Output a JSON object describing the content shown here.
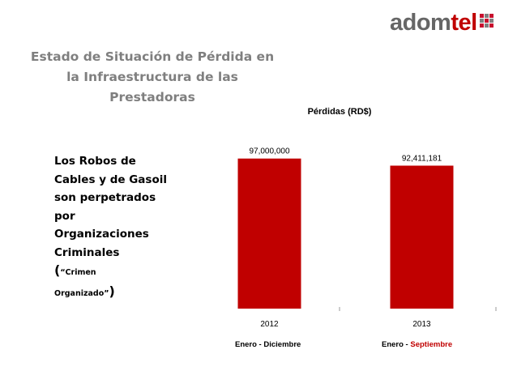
{
  "logo": {
    "text_a": "adom",
    "text_b": "tel",
    "grid_colors": [
      "#c8102e",
      "#7f7f7f",
      "#c8102e",
      "#7f7f7f",
      "#c8102e",
      "#7f7f7f",
      "#c8102e",
      "#7f7f7f",
      "#c8102e"
    ]
  },
  "title": {
    "line1": "Estado de Situación de Pérdida en",
    "line2": "la Infraestructura de las",
    "line3": "Prestadoras"
  },
  "side_text": {
    "line1": "Los Robos de",
    "line2": "Cables y de Gasoil",
    "line3": "son perpetrados",
    "line4": "por",
    "line5": "Organizaciones",
    "line6": "Criminales",
    "paren_open": "(",
    "small1": "“Crimen",
    "small2": "Organizado”",
    "paren_close": ")"
  },
  "chart_data": {
    "type": "bar",
    "title": "Pérdidas (RD$)",
    "categories": [
      "2012",
      "2013"
    ],
    "values": [
      97000000,
      92411181
    ],
    "data_labels": [
      "97,000,000",
      "92,411,181"
    ],
    "bar_color": "#c00000",
    "ylim": [
      0,
      100000000
    ],
    "grid": false
  },
  "subtitles": {
    "left": "Enero - Diciembre",
    "right_prefix": "Enero - ",
    "right_highlight": "Septiembre"
  }
}
